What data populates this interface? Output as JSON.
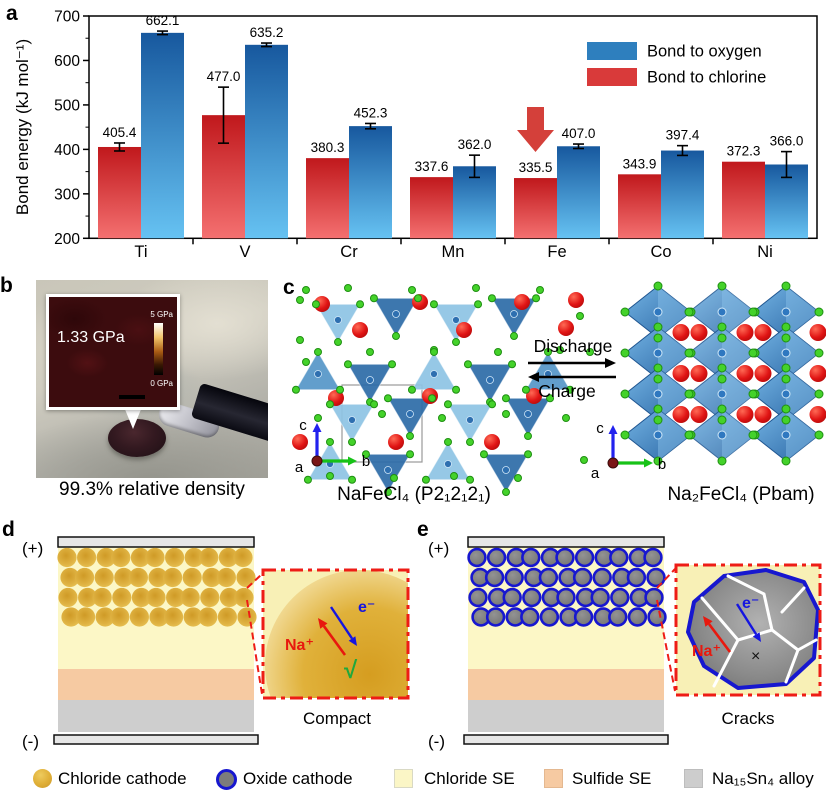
{
  "panels": {
    "a": "a",
    "b": "b",
    "c": "c",
    "d": "d",
    "e": "e"
  },
  "chart_data": {
    "type": "bar",
    "categories": [
      "Ti",
      "V",
      "Cr",
      "Mn",
      "Fe",
      "Co",
      "Ni"
    ],
    "series": [
      {
        "name": "Bond to oxygen",
        "values": [
          662.1,
          635.2,
          452.3,
          362.0,
          407.0,
          397.4,
          366.0
        ],
        "errors": [
          4,
          4,
          6,
          25,
          5,
          11,
          29
        ]
      },
      {
        "name": "Bond to chlorine",
        "values": [
          405.4,
          477.0,
          380.3,
          337.6,
          335.5,
          343.9,
          372.3
        ],
        "errors": [
          9,
          63,
          0,
          0,
          0,
          0,
          0
        ]
      }
    ],
    "ylabel": "Bond energy (kJ mol⁻¹)",
    "ylim": [
      200,
      700
    ],
    "yticks": [
      200,
      300,
      400,
      500,
      600,
      700
    ],
    "legend_position": "top-right",
    "highlight_category": "Fe"
  },
  "panel_b": {
    "inset_value": "1.33 GPa",
    "colorbar_top": "5 GPa",
    "colorbar_bottom": "0 GPa",
    "caption": "99.3% relative density"
  },
  "panel_c": {
    "discharge": "Discharge",
    "charge": "Charge",
    "left_caption": "NaFeCl₄ (P2₁2₁2₁)",
    "right_caption": "Na₂FeCl₄ (Pbam)",
    "axis_a": "a",
    "axis_b": "b",
    "axis_c": "c"
  },
  "panel_d": {
    "plus": "(+)",
    "minus": "(-)",
    "na": "Na⁺",
    "electron": "e⁻",
    "check": "√",
    "caption": "Compact"
  },
  "panel_e": {
    "plus": "(+)",
    "minus": "(-)",
    "na": "Na⁺",
    "electron": "e⁻",
    "cross": "×",
    "caption": "Cracks"
  },
  "legend": {
    "items": [
      {
        "swatch": "chloride-cathode",
        "label": "Chloride cathode"
      },
      {
        "swatch": "oxide-cathode",
        "label": "Oxide cathode"
      },
      {
        "swatch": "chloride-se",
        "label": "Chloride SE"
      },
      {
        "swatch": "sulfide-se",
        "label": "Sulfide SE"
      },
      {
        "swatch": "alloy",
        "label": "Na₁₅Sn₄ alloy"
      }
    ]
  },
  "palette": {
    "oxygen_top": "#17589e",
    "oxygen_bottom": "#66c2f2",
    "legend_oxygen": "#2e7fbe",
    "chlorine_top": "#c0181c",
    "chlorine_bottom": "#f47070",
    "legend_chlorine": "#d93a3a",
    "highlight_arrow": "#d4403a",
    "chloride_cathode": "#dfae36",
    "oxide_fill": "#7c7c7c",
    "oxide_ring": "#1717cf",
    "chloride_se": "#fcf7c6",
    "sulfide_se": "#f6caa2",
    "alloy": "#cecece",
    "electrode": "#e6e6e6",
    "inset_border": "#ee1c16",
    "na_red": "#e8180e",
    "e_blue": "#1515e0",
    "check_green": "#1fa83c",
    "tetra_light": "#8ec4e4",
    "tetra_mid": "#5596c8",
    "tetra_dark": "#2d6ca8",
    "octa_dark": "#2a66a4",
    "octa_light": "#74b4e4",
    "na_sphere": "#e01414",
    "cl_sphere": "#44d22a"
  }
}
